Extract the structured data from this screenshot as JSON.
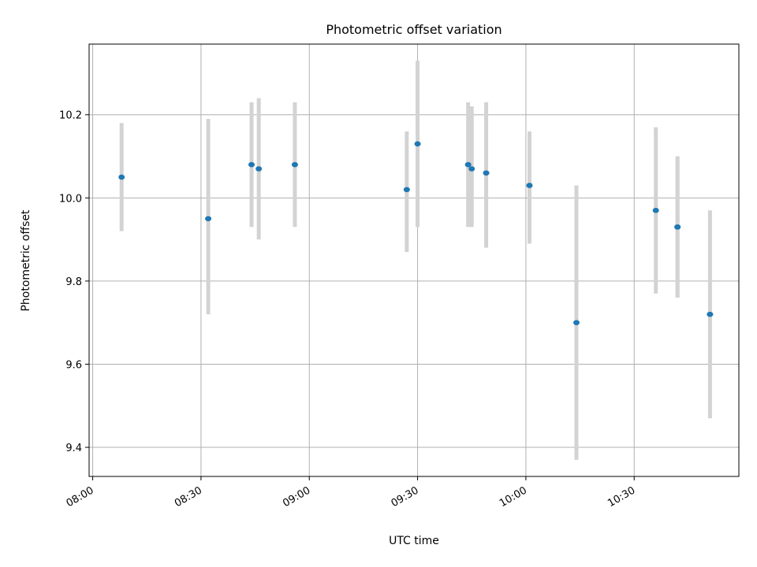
{
  "chart_data": {
    "type": "scatter",
    "title": "Photometric offset variation",
    "xlabel": "UTC time",
    "ylabel": "Photometric offset",
    "xlim": [
      "07:59",
      "10:59"
    ],
    "ylim": [
      9.33,
      10.37
    ],
    "x_ticks": [
      "08:00",
      "08:30",
      "09:00",
      "09:30",
      "10:00",
      "10:30"
    ],
    "y_ticks": [
      "9.4",
      "9.6",
      "9.8",
      "10.0",
      "10.2"
    ],
    "grid": true,
    "marker_color": "#1f77b4",
    "errorbar_color": "#d3d3d3",
    "points": [
      {
        "time": "08:08",
        "value": 10.05,
        "err_low": 9.92,
        "err_high": 10.18
      },
      {
        "time": "08:32",
        "value": 9.95,
        "err_low": 9.72,
        "err_high": 10.19
      },
      {
        "time": "08:44",
        "value": 10.08,
        "err_low": 9.93,
        "err_high": 10.23
      },
      {
        "time": "08:46",
        "value": 10.07,
        "err_low": 9.9,
        "err_high": 10.24
      },
      {
        "time": "08:56",
        "value": 10.08,
        "err_low": 9.93,
        "err_high": 10.23
      },
      {
        "time": "09:27",
        "value": 10.02,
        "err_low": 9.87,
        "err_high": 10.16
      },
      {
        "time": "09:30",
        "value": 10.13,
        "err_low": 9.93,
        "err_high": 10.33
      },
      {
        "time": "09:44",
        "value": 10.08,
        "err_low": 9.93,
        "err_high": 10.23
      },
      {
        "time": "09:45",
        "value": 10.07,
        "err_low": 9.93,
        "err_high": 10.22
      },
      {
        "time": "09:49",
        "value": 10.06,
        "err_low": 9.88,
        "err_high": 10.23
      },
      {
        "time": "10:01",
        "value": 10.03,
        "err_low": 9.89,
        "err_high": 10.16
      },
      {
        "time": "10:14",
        "value": 9.7,
        "err_low": 9.37,
        "err_high": 10.03
      },
      {
        "time": "10:36",
        "value": 9.97,
        "err_low": 9.77,
        "err_high": 10.17
      },
      {
        "time": "10:42",
        "value": 9.93,
        "err_low": 9.76,
        "err_high": 10.1
      },
      {
        "time": "10:42",
        "value": 9.93,
        "err_low": 9.76,
        "err_high": 10.1
      },
      {
        "time": "10:51",
        "value": 9.72,
        "err_low": 9.47,
        "err_high": 9.97
      }
    ]
  }
}
